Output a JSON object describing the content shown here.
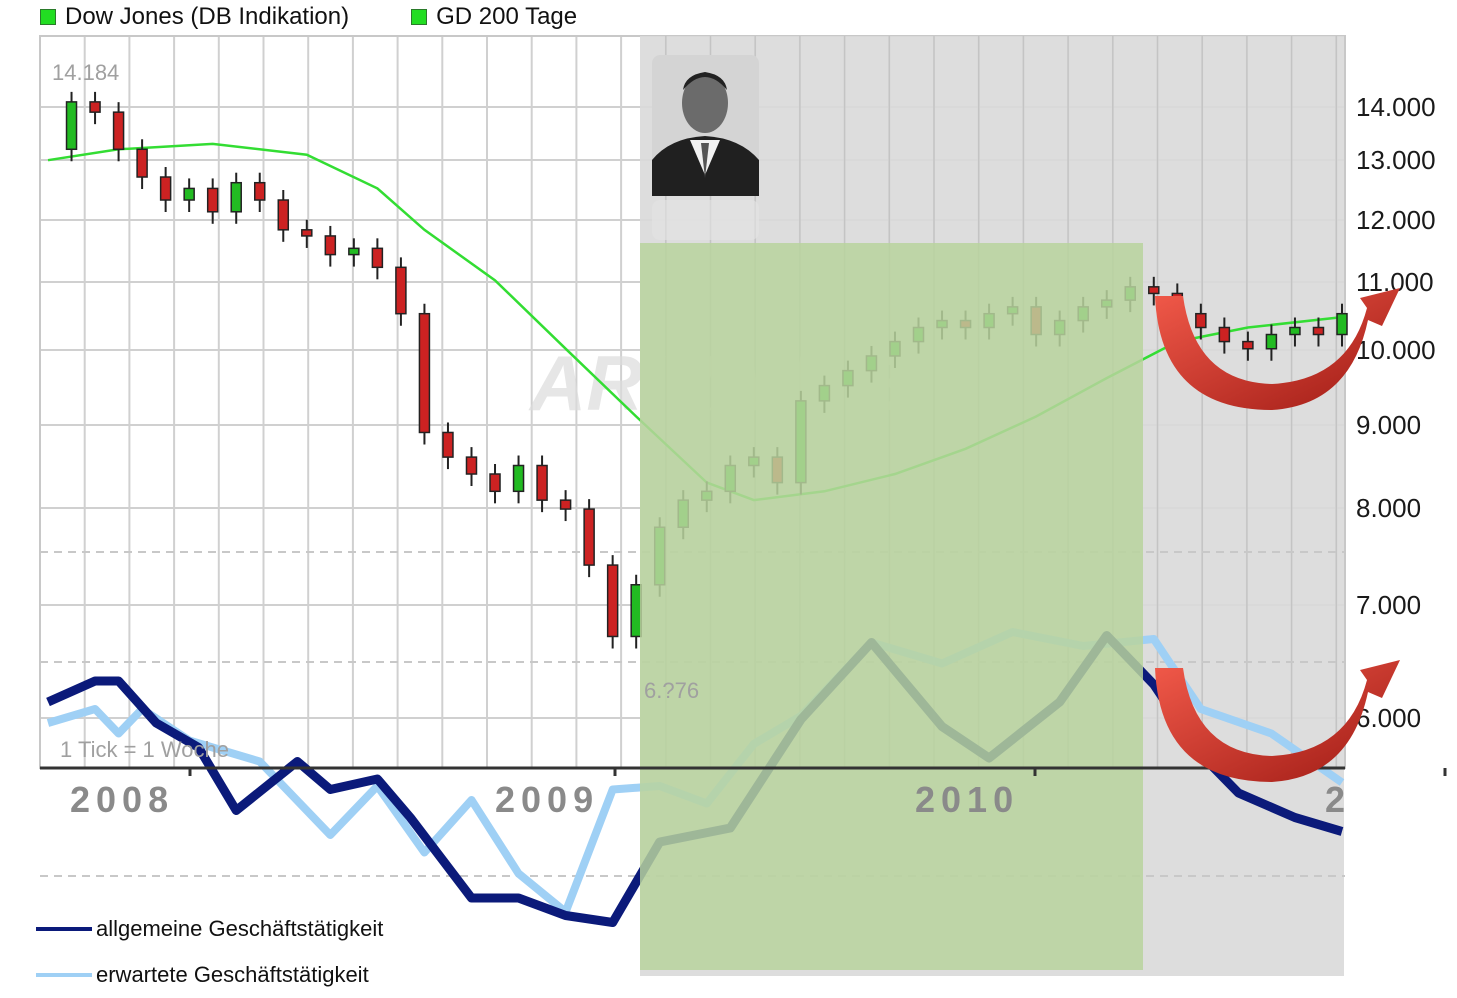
{
  "legend": {
    "dow": {
      "label": "Dow Jones (DB Indikation)",
      "color": "#22dd22"
    },
    "gd200": {
      "label": "GD 200 Tage",
      "color": "#22dd22"
    }
  },
  "annotations": {
    "max": "14.184",
    "min": "6.?76",
    "tick": "1 Tick = 1 Woche",
    "watermark": "ARIVA.DE"
  },
  "bottom_legend": {
    "general": {
      "label": "allgemeine Geschäftstätigkeit",
      "color": "#0b1a7a"
    },
    "expected": {
      "label": "erwartete Geschäftstätigkeit",
      "color": "#9fd0f5"
    }
  },
  "chart_data": {
    "type": "line",
    "x_ticks": [
      "2008",
      "2009",
      "2010",
      "2"
    ],
    "y_ticks": [
      "14.000",
      "13.000",
      "12.000",
      "11.000",
      "10.000",
      "9.000",
      "8.000",
      "7.000",
      "6.000"
    ],
    "y_tick_values": [
      14000,
      13000,
      12000,
      11000,
      10000,
      9000,
      8000,
      7000,
      6000
    ],
    "y_scale": "log",
    "grid": true,
    "legend_position": "top-left",
    "shaded_periods": [
      {
        "from": 2009.04,
        "to": 2010.27,
        "color": "#b8d49e"
      }
    ],
    "gray_region_from": 2009.04,
    "series": [
      {
        "name": "Dow Jones (DB Indikation)",
        "kind": "candlestick-close",
        "x": [
          2007.85,
          2007.9,
          2007.95,
          2008.0,
          2008.05,
          2008.1,
          2008.15,
          2008.2,
          2008.25,
          2008.3,
          2008.35,
          2008.4,
          2008.45,
          2008.5,
          2008.55,
          2008.6,
          2008.65,
          2008.7,
          2008.75,
          2008.8,
          2008.85,
          2008.9,
          2008.95,
          2009.0,
          2009.05,
          2009.1,
          2009.15,
          2009.2,
          2009.25,
          2009.3,
          2009.35,
          2009.4,
          2009.45,
          2009.5,
          2009.55,
          2009.6,
          2009.65,
          2009.7,
          2009.75,
          2009.8,
          2009.85,
          2009.9,
          2009.95,
          2010.0,
          2010.05,
          2010.1,
          2010.15,
          2010.2,
          2010.25,
          2010.3,
          2010.35,
          2010.4,
          2010.45,
          2010.5,
          2010.55,
          2010.6
        ],
        "values": [
          13200,
          14100,
          13900,
          13200,
          12700,
          12300,
          12500,
          12100,
          12600,
          12300,
          11800,
          11700,
          11400,
          11500,
          11200,
          10500,
          8900,
          8600,
          8400,
          8200,
          8500,
          8100,
          8000,
          7400,
          6700,
          7200,
          7800,
          8100,
          8200,
          8500,
          8600,
          8300,
          9300,
          9500,
          9700,
          9900,
          10100,
          10300,
          10400,
          10300,
          10500,
          10600,
          10200,
          10400,
          10600,
          10700,
          10900,
          10800,
          10500,
          10300,
          10100,
          10000,
          10200,
          10300,
          10200,
          10500
        ]
      },
      {
        "name": "GD 200 Tage",
        "x": [
          2007.85,
          2008.0,
          2008.2,
          2008.4,
          2008.55,
          2008.65,
          2008.8,
          2008.95,
          2009.1,
          2009.25,
          2009.35,
          2009.5,
          2009.65,
          2009.8,
          2009.95,
          2010.1,
          2010.25,
          2010.4,
          2010.6
        ],
        "values": [
          13000,
          13200,
          13300,
          13100,
          12500,
          11800,
          11000,
          10000,
          9100,
          8300,
          8100,
          8200,
          8400,
          8700,
          9100,
          9600,
          10100,
          10300,
          10450
        ]
      },
      {
        "name": "erwartete Geschäftstätigkeit",
        "kind": "index-overlay",
        "x": [
          2007.85,
          2007.95,
          2008.0,
          2008.05,
          2008.15,
          2008.3,
          2008.45,
          2008.55,
          2008.65,
          2008.75,
          2008.85,
          2008.95,
          2009.05,
          2009.15,
          2009.25,
          2009.35,
          2009.45,
          2009.6,
          2009.75,
          2009.9,
          2010.05,
          2010.2,
          2010.3,
          2010.45,
          2010.6
        ],
        "values": [
          0.62,
          0.66,
          0.59,
          0.66,
          0.57,
          0.51,
          0.3,
          0.44,
          0.25,
          0.4,
          0.19,
          0.08,
          0.43,
          0.44,
          0.39,
          0.56,
          0.64,
          0.85,
          0.79,
          0.88,
          0.84,
          0.86,
          0.66,
          0.59,
          0.45
        ]
      },
      {
        "name": "allgemeine Geschäftstätigkeit",
        "kind": "index-overlay",
        "x": [
          2007.85,
          2007.95,
          2008.0,
          2008.08,
          2008.17,
          2008.25,
          2008.38,
          2008.45,
          2008.55,
          2008.62,
          2008.75,
          2008.85,
          2008.95,
          2009.05,
          2009.15,
          2009.3,
          2009.45,
          2009.6,
          2009.75,
          2009.85,
          2010.0,
          2010.1,
          2010.2,
          2010.3,
          2010.38,
          2010.5,
          2010.6
        ],
        "values": [
          0.68,
          0.74,
          0.74,
          0.62,
          0.55,
          0.37,
          0.51,
          0.43,
          0.46,
          0.35,
          0.12,
          0.12,
          0.07,
          0.05,
          0.28,
          0.32,
          0.63,
          0.85,
          0.61,
          0.52,
          0.68,
          0.87,
          0.73,
          0.53,
          0.42,
          0.35,
          0.31
        ]
      }
    ],
    "trend_arrows": 2
  }
}
